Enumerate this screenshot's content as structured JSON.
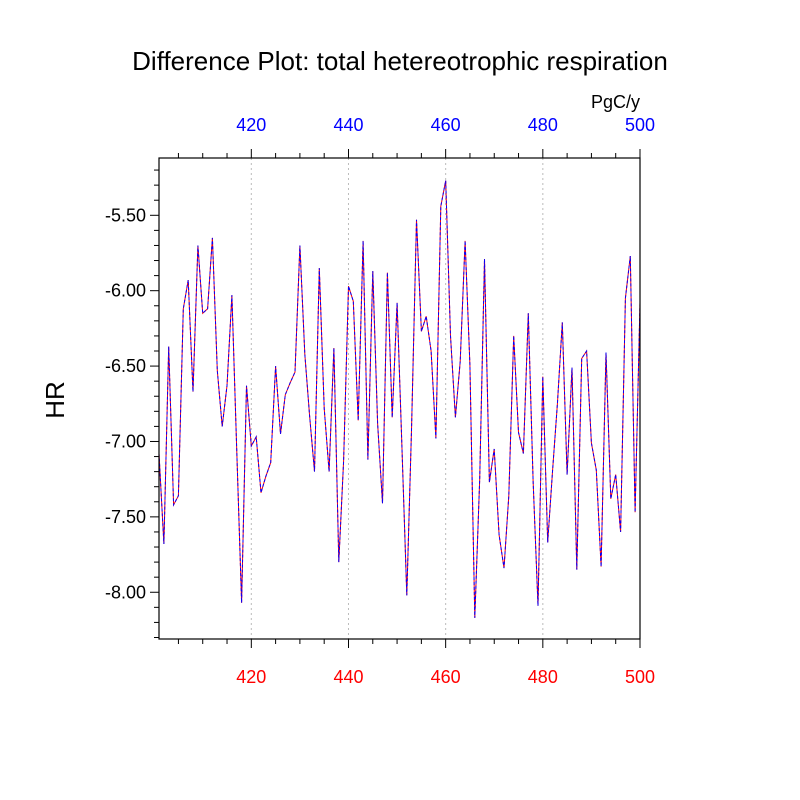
{
  "chart_data": {
    "type": "line",
    "title": "Difference Plot: total hetereotrophic respiration",
    "units": "PgC/y",
    "ylabel": "HR",
    "xlabel": "",
    "xlim": [
      401,
      500
    ],
    "ylim": [
      -8.31,
      -5.12
    ],
    "x_ticks": [
      420,
      440,
      460,
      480,
      500
    ],
    "x_tick_labels": [
      "420",
      "440",
      "460",
      "480",
      "500"
    ],
    "y_ticks": [
      -5.5,
      -6.0,
      -6.5,
      -7.0,
      -7.5,
      -8.0
    ],
    "y_tick_labels": [
      "-5.50",
      "-6.00",
      "-6.50",
      "-7.00",
      "-7.50",
      "-8.00"
    ],
    "grid": "vertical dotted lines at major x ticks",
    "colors": {
      "bottom_axis_labels": "#ff0000",
      "top_axis_labels": "#0000ff",
      "series_a": "#ff0000",
      "series_b": "#0000ff",
      "grid": "#bbbbbb",
      "axis": "#000000"
    },
    "x": [
      401,
      402,
      403,
      404,
      405,
      406,
      407,
      408,
      409,
      410,
      411,
      412,
      413,
      414,
      415,
      416,
      417,
      418,
      419,
      420,
      421,
      422,
      423,
      424,
      425,
      426,
      427,
      428,
      429,
      430,
      431,
      432,
      433,
      434,
      435,
      436,
      437,
      438,
      439,
      440,
      441,
      442,
      443,
      444,
      445,
      446,
      447,
      448,
      449,
      450,
      451,
      452,
      453,
      454,
      455,
      456,
      457,
      458,
      459,
      460,
      461,
      462,
      463,
      464,
      465,
      466,
      467,
      468,
      469,
      470,
      471,
      472,
      473,
      474,
      475,
      476,
      477,
      478,
      479,
      480,
      481,
      482,
      483,
      484,
      485,
      486,
      487,
      488,
      489,
      490,
      491,
      492,
      493,
      494,
      495,
      496,
      497,
      498,
      499,
      500
    ],
    "series": [
      {
        "values": [
          -7.08,
          -7.68,
          -6.37,
          -7.42,
          -7.36,
          -6.12,
          -5.93,
          -6.67,
          -5.7,
          -6.15,
          -6.12,
          -5.65,
          -6.53,
          -6.9,
          -6.63,
          -6.03,
          -7.05,
          -8.07,
          -6.63,
          -7.03,
          -6.97,
          -7.34,
          -7.23,
          -7.14,
          -6.5,
          -6.95,
          -6.69,
          -6.61,
          -6.54,
          -5.7,
          -6.42,
          -6.83,
          -7.2,
          -5.85,
          -6.78,
          -7.2,
          -6.38,
          -7.8,
          -7.13,
          -5.97,
          -6.07,
          -6.86,
          -5.67,
          -7.12,
          -5.87,
          -6.88,
          -7.41,
          -5.88,
          -6.84,
          -6.08,
          -7.03,
          -8.02,
          -6.9,
          -5.53,
          -6.27,
          -6.17,
          -6.4,
          -6.98,
          -5.44,
          -5.27,
          -6.3,
          -6.84,
          -6.47,
          -5.67,
          -6.49,
          -8.17,
          -7.25,
          -5.79,
          -7.27,
          -7.05,
          -7.62,
          -7.84,
          -7.36,
          -6.3,
          -6.94,
          -7.08,
          -6.15,
          -7.26,
          -8.09,
          -6.57,
          -7.67,
          -7.2,
          -6.75,
          -6.21,
          -7.22,
          -6.51,
          -7.85,
          -6.45,
          -6.4,
          -7.01,
          -7.19,
          -7.83,
          -6.41,
          -7.38,
          -7.22,
          -7.6,
          -6.05,
          -5.77,
          -7.47,
          -6.08
        ]
      }
    ]
  }
}
